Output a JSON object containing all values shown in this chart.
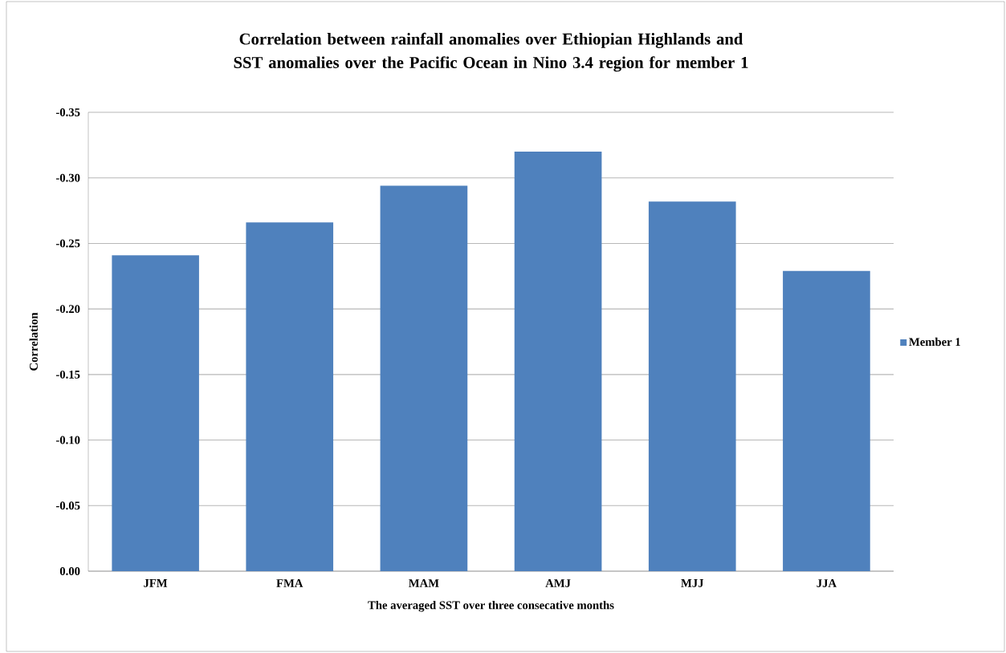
{
  "chart_data": {
    "type": "bar",
    "title": "Correlation between rainfall anomalies over Ethiopian Highlands and SST anomalies over the Pacific Ocean in Nino 3.4 region for member 1",
    "xlabel": "The averaged SST over three consecative months",
    "ylabel": "Correlation",
    "categories": [
      "JFM",
      "FMA",
      "MAM",
      "AMJ",
      "MJJ",
      "JJA"
    ],
    "series": [
      {
        "name": "Member 1",
        "color": "#4f81bd",
        "values": [
          -0.241,
          -0.266,
          -0.294,
          -0.32,
          -0.282,
          -0.229
        ]
      }
    ],
    "ylim": [
      0,
      -0.35
    ],
    "yticks": [
      {
        "value": 0,
        "label": "0.00"
      },
      {
        "value": -0.05,
        "label": "-0.05"
      },
      {
        "value": -0.1,
        "label": "-0.10"
      },
      {
        "value": -0.15,
        "label": "-0.15"
      },
      {
        "value": -0.2,
        "label": "-0.20"
      },
      {
        "value": -0.25,
        "label": "-0.25"
      },
      {
        "value": -0.3,
        "label": "-0.30"
      },
      {
        "value": -0.35,
        "label": "-0.35"
      }
    ],
    "grid": "y",
    "legend": "right"
  }
}
